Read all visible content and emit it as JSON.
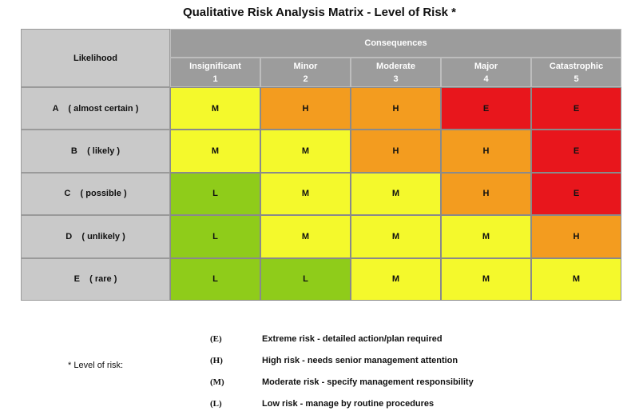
{
  "title": "Qualitative Risk Analysis Matrix - Level of Risk *",
  "table": {
    "corner": "Likelihood",
    "group": "Consequences",
    "columns": [
      {
        "name": "Insignificant",
        "number": 1
      },
      {
        "name": "Minor",
        "number": 2
      },
      {
        "name": "Moderate",
        "number": 3
      },
      {
        "name": "Major",
        "number": 4
      },
      {
        "name": "Catastrophic",
        "number": 5
      }
    ],
    "rows": [
      {
        "label": "A    ( almost certain )",
        "cells": [
          {
            "text": "M",
            "color": "#f4f92c"
          },
          {
            "text": "H",
            "color": "#f39c1f"
          },
          {
            "text": "H",
            "color": "#f39c1f"
          },
          {
            "text": "E",
            "color": "#e8161c"
          },
          {
            "text": "E",
            "color": "#e8161c"
          }
        ]
      },
      {
        "label": "B    ( likely )",
        "cells": [
          {
            "text": "M",
            "color": "#f4f92c"
          },
          {
            "text": "M",
            "color": "#f4f92c"
          },
          {
            "text": "H",
            "color": "#f39c1f"
          },
          {
            "text": "H",
            "color": "#f39c1f"
          },
          {
            "text": "E",
            "color": "#e8161c"
          }
        ]
      },
      {
        "label": "C    ( possible )",
        "cells": [
          {
            "text": "L",
            "color": "#8fcc1a"
          },
          {
            "text": "M",
            "color": "#f4f92c"
          },
          {
            "text": "M",
            "color": "#f4f92c"
          },
          {
            "text": "H",
            "color": "#f39c1f"
          },
          {
            "text": "E",
            "color": "#e8161c"
          }
        ]
      },
      {
        "label": "D    ( unlikely )",
        "cells": [
          {
            "text": "L",
            "color": "#8fcc1a"
          },
          {
            "text": "M",
            "color": "#f4f92c"
          },
          {
            "text": "M",
            "color": "#f4f92c"
          },
          {
            "text": "M",
            "color": "#f4f92c"
          },
          {
            "text": "H",
            "color": "#f39c1f"
          }
        ]
      },
      {
        "label": "E    ( rare )",
        "cells": [
          {
            "text": "L",
            "color": "#8fcc1a"
          },
          {
            "text": "L",
            "color": "#8fcc1a"
          },
          {
            "text": "M",
            "color": "#f4f92c"
          },
          {
            "text": "M",
            "color": "#f4f92c"
          },
          {
            "text": "M",
            "color": "#f4f92c"
          }
        ]
      }
    ]
  },
  "legend": {
    "label": "* Level of risk:",
    "items": [
      {
        "code": "(E)",
        "text": "Extreme risk - detailed action/plan required"
      },
      {
        "code": "(H)",
        "text": "High risk - needs senior management attention"
      },
      {
        "code": "(M)",
        "text": "Moderate risk - specify management responsibility"
      },
      {
        "code": "(L)",
        "text": "Low risk - manage by routine procedures"
      }
    ]
  }
}
